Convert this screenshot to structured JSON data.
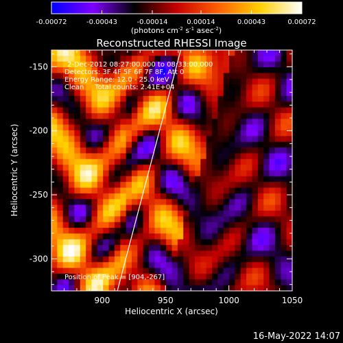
{
  "chart_data": {
    "type": "heatmap",
    "title": "Reconstructed RHESSI Image",
    "xlabel": "Heliocentric X (arcsec)",
    "ylabel": "Heliocentric Y (arcsec)",
    "xlim": [
      860,
      1050
    ],
    "ylim": [
      -325,
      -137
    ],
    "xticks": [
      900,
      950,
      1000,
      1050
    ],
    "yticks": [
      -150,
      -200,
      -250,
      -300
    ],
    "colorbar": {
      "ticks": [
        "-0.00072",
        "-0.00043",
        "-0.00014",
        "0.00014",
        "0.00043",
        "0.00072"
      ],
      "tick_values": [
        -0.00072,
        -0.00043,
        -0.00014,
        0.00014,
        0.00043,
        0.00072
      ],
      "range": [
        -0.00072,
        0.00072
      ],
      "unit_label_parts": [
        "(photons cm",
        "-2",
        " s",
        "-1",
        " asec",
        "-2",
        ")"
      ],
      "colors": [
        "#0000ff",
        "#7f00ff",
        "#000000",
        "#c80000",
        "#ff6000",
        "#ffd000",
        "#ffffff"
      ]
    },
    "annotations": [
      "2-Dec-2012 08:27:00.000 to 08:33:00.000",
      "Detectors: 3F 4F 5F 6F 7F 8F, Att 0",
      "Energy Range: 12.0 - 25.0 keV",
      "Clean     Total counts: 2.41E+04"
    ],
    "peak_label": "Position of Peak = [904,-267]",
    "peak": [
      904,
      -267
    ],
    "limb_line": [
      [
        912,
        -325
      ],
      [
        962,
        -137
      ]
    ]
  },
  "footer": {
    "timestamp": "16-May-2022 14:07"
  }
}
